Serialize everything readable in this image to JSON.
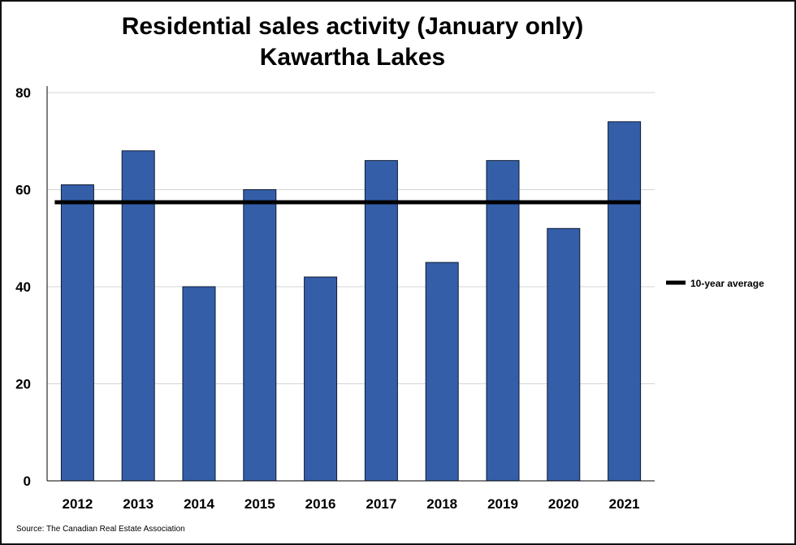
{
  "chart_data": {
    "type": "bar",
    "title": "Residential sales activity (January only)",
    "subtitle": "Kawartha Lakes",
    "categories": [
      "2012",
      "2013",
      "2014",
      "2015",
      "2016",
      "2017",
      "2018",
      "2019",
      "2020",
      "2021"
    ],
    "series": [
      {
        "values": [
          61,
          68,
          40,
          60,
          42,
          66,
          45,
          66,
          52,
          74
        ]
      }
    ],
    "reference_line": {
      "name": "10-year average",
      "value": 57.4
    },
    "xlabel": "",
    "ylabel": "",
    "ylim": [
      0,
      80
    ],
    "yticks": [
      0,
      20,
      40,
      60,
      80
    ],
    "grid": true,
    "legend_position": "right",
    "source": "Source: The Canadian Real Estate Association",
    "colors": {
      "bar": "#345ea8",
      "bar_edge": "#0d1a33",
      "average_line": "#000000",
      "grid": "#d4d4d4"
    }
  }
}
